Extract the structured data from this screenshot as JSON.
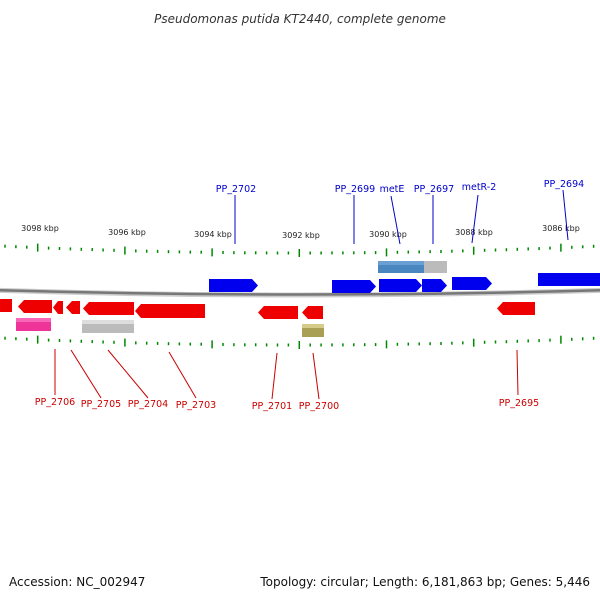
{
  "header": {
    "title": "Pseudomonas putida KT2440, complete genome"
  },
  "footer": {
    "accession": "Accession: NC_002947",
    "summary": "Topology: circular; Length: 6,181,863 bp; Genes: 5,446"
  },
  "colors": {
    "forward_gene": "#0000ee",
    "reverse_gene": "#ee0000",
    "forward_label": "#0000cc",
    "reverse_label": "#cc0000",
    "backbone": "#888888",
    "tick": "#008800",
    "feature_steelblue": "#4a86c0",
    "feature_silver": "#bbbbbb",
    "feature_magenta": "#ee3399",
    "feature_olive": "#aaa055"
  },
  "scale": {
    "ticks": [
      {
        "label": "3098 kbp"
      },
      {
        "label": "3096 kbp"
      },
      {
        "label": "3094 kbp"
      },
      {
        "label": "3092 kbp"
      },
      {
        "label": "3090 kbp"
      },
      {
        "label": "3088 kbp"
      },
      {
        "label": "3086 kbp"
      }
    ]
  },
  "genes_forward": [
    {
      "label": "PP_2702"
    },
    {
      "label": "PP_2699"
    },
    {
      "label": "metE"
    },
    {
      "label": "PP_2697"
    },
    {
      "label": "metR-2"
    },
    {
      "label": "PP_2694"
    }
  ],
  "genes_reverse": [
    {
      "label": "PP_2706"
    },
    {
      "label": "PP_2705"
    },
    {
      "label": "PP_2704"
    },
    {
      "label": "PP_2703"
    },
    {
      "label": "PP_2701"
    },
    {
      "label": "PP_2700"
    },
    {
      "label": "PP_2695"
    }
  ]
}
